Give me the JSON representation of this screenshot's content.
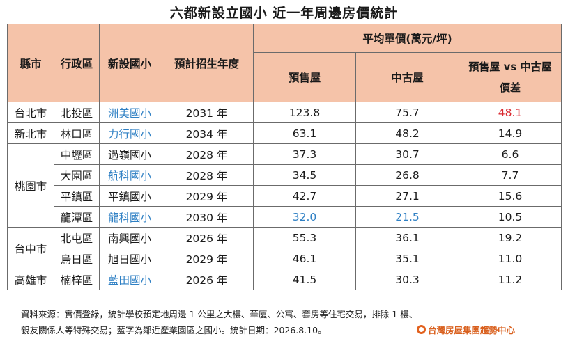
{
  "title": "六都新設立國小  近一年周邊房價統計",
  "headers": {
    "city": "縣市",
    "district": "行政區",
    "school": "新設國小",
    "year": "預計招生年度",
    "avg_price": "平均單價(萬元/坪)",
    "presale": "預售屋",
    "used": "中古屋",
    "diff_line1": "預售屋 vs 中古屋",
    "diff_line2": "價差"
  },
  "cities": [
    "台北市",
    "新北市",
    "桃園市",
    "台中市",
    "高雄市"
  ],
  "rows": [
    {
      "district": "北投區",
      "school": "洲美國小",
      "school_blue": true,
      "year": "2031 年",
      "presale": "123.8",
      "used": "75.7",
      "diff": "48.1"
    },
    {
      "district": "林口區",
      "school": "力行國小",
      "school_blue": true,
      "year": "2034 年",
      "presale": "63.1",
      "used": "48.2",
      "diff": "14.9"
    },
    {
      "district": "中壢區",
      "school": "過嶺國小",
      "school_blue": false,
      "year": "2028 年",
      "presale": "37.3",
      "used": "30.7",
      "diff": "6.6"
    },
    {
      "district": "大園區",
      "school": "航科國小",
      "school_blue": true,
      "year": "2028 年",
      "presale": "34.5",
      "used": "26.8",
      "diff": "7.7"
    },
    {
      "district": "平鎮區",
      "school": "平鎮國小",
      "school_blue": false,
      "year": "2029 年",
      "presale": "42.7",
      "used": "27.1",
      "diff": "15.6"
    },
    {
      "district": "龍潭區",
      "school": "龍科國小",
      "school_blue": true,
      "year": "2030 年",
      "presale": "32.0",
      "used": "21.5",
      "diff": "10.5"
    },
    {
      "district": "北屯區",
      "school": "南興國小",
      "school_blue": false,
      "year": "2026 年",
      "presale": "55.3",
      "used": "36.1",
      "diff": "19.2"
    },
    {
      "district": "烏日區",
      "school": "旭日國小",
      "school_blue": false,
      "year": "2029 年",
      "presale": "46.1",
      "used": "35.1",
      "diff": "11.0"
    },
    {
      "district": "楠梓區",
      "school": "藍田國小",
      "school_blue": true,
      "year": "2026 年",
      "presale": "41.5",
      "used": "30.3",
      "diff": "11.2"
    }
  ],
  "footer": {
    "line1": "資料來源：實價登錄，統計學校預定地周邊 1 公里之大樓、華廈、公寓、套房等住宅交易，排除 1 樓、",
    "line2": "親友關係人等特殊交易；藍字為鄰近產業園區之國小。統計日期：2026.8.10。"
  },
  "logo_text": "台灣房屋集團趨勢中心",
  "colors": {
    "header_bg": "#f5c3a9",
    "blue": "#2f80c4",
    "red": "#d9282f"
  }
}
